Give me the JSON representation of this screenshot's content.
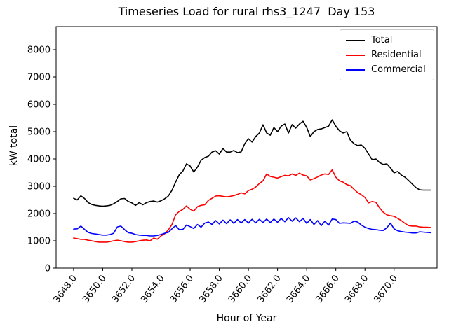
{
  "header": {
    "title": "Timeseries Load for rural rhs3_1247  Day 153"
  },
  "axes": {
    "xlabel": "Hour of Year",
    "ylabel": "kW total",
    "xtick_labels": [
      "3648.0",
      "3650.0",
      "3652.0",
      "3654.0",
      "3656.0",
      "3658.0",
      "3660.0",
      "3662.0",
      "3664.0",
      "3666.0",
      "3668.0",
      "3670.0"
    ],
    "ytick_labels": [
      "0",
      "1000",
      "2000",
      "3000",
      "4000",
      "5000",
      "6000",
      "7000",
      "8000"
    ]
  },
  "legend": {
    "items": [
      {
        "label": "Total",
        "color": "#000000"
      },
      {
        "label": "Residential",
        "color": "#ff0000"
      },
      {
        "label": "Commercial",
        "color": "#0000ff"
      }
    ]
  },
  "chart_data": {
    "type": "line",
    "title": "Timeseries Load for rural rhs3_1247  Day 153",
    "xlabel": "Hour of Year",
    "ylabel": "kW total",
    "xlim": [
      3646.8,
      3672.95
    ],
    "ylim": [
      0,
      8846
    ],
    "xticks": [
      3648,
      3650,
      3652,
      3654,
      3656,
      3658,
      3660,
      3662,
      3664,
      3666,
      3668,
      3670
    ],
    "yticks": [
      0,
      1000,
      2000,
      3000,
      4000,
      5000,
      6000,
      7000,
      8000
    ],
    "grid": false,
    "legend_position": "upper right",
    "x": [
      3648.0,
      3648.25,
      3648.5,
      3648.75,
      3649.0,
      3649.25,
      3649.5,
      3649.75,
      3650.0,
      3650.25,
      3650.5,
      3650.75,
      3651.0,
      3651.25,
      3651.5,
      3651.75,
      3652.0,
      3652.25,
      3652.5,
      3652.75,
      3653.0,
      3653.25,
      3653.5,
      3653.75,
      3654.0,
      3654.25,
      3654.5,
      3654.75,
      3655.0,
      3655.25,
      3655.5,
      3655.75,
      3656.0,
      3656.25,
      3656.5,
      3656.75,
      3657.0,
      3657.25,
      3657.5,
      3657.75,
      3658.0,
      3658.25,
      3658.5,
      3658.75,
      3659.0,
      3659.25,
      3659.5,
      3659.75,
      3660.0,
      3660.25,
      3660.5,
      3660.75,
      3661.0,
      3661.25,
      3661.5,
      3661.75,
      3662.0,
      3662.25,
      3662.5,
      3662.75,
      3663.0,
      3663.25,
      3663.5,
      3663.75,
      3664.0,
      3664.25,
      3664.5,
      3664.75,
      3665.0,
      3665.25,
      3665.5,
      3665.75,
      3666.0,
      3666.25,
      3666.5,
      3666.75,
      3667.0,
      3667.25,
      3667.5,
      3667.75,
      3668.0,
      3668.25,
      3668.5,
      3668.75,
      3669.0,
      3669.25,
      3669.5,
      3669.75,
      3670.0,
      3670.25,
      3670.5,
      3670.75,
      3671.0,
      3671.25,
      3671.5,
      3671.75,
      3672.0,
      3672.25,
      3672.5
    ],
    "series": [
      {
        "name": "Total",
        "color": "#000000",
        "values": [
          2560,
          2500,
          2650,
          2550,
          2400,
          2330,
          2300,
          2280,
          2270,
          2280,
          2300,
          2360,
          2440,
          2540,
          2550,
          2440,
          2390,
          2300,
          2400,
          2320,
          2400,
          2440,
          2460,
          2420,
          2470,
          2540,
          2640,
          2850,
          3150,
          3420,
          3560,
          3820,
          3740,
          3520,
          3700,
          3950,
          4050,
          4100,
          4250,
          4300,
          4180,
          4380,
          4250,
          4250,
          4310,
          4230,
          4260,
          4560,
          4740,
          4620,
          4820,
          4950,
          5250,
          4950,
          4870,
          5150,
          5000,
          5200,
          5280,
          4950,
          5260,
          5130,
          5280,
          5380,
          5150,
          4820,
          5000,
          5080,
          5100,
          5150,
          5200,
          5430,
          5200,
          5030,
          4950,
          5000,
          4690,
          4560,
          4490,
          4510,
          4390,
          4180,
          3970,
          4000,
          3870,
          3800,
          3820,
          3670,
          3490,
          3540,
          3410,
          3330,
          3210,
          3080,
          2950,
          2870,
          2860,
          2860,
          2860
        ]
      },
      {
        "name": "Residential",
        "color": "#ff0000",
        "values": [
          1100,
          1080,
          1050,
          1050,
          1020,
          1000,
          970,
          950,
          950,
          950,
          970,
          1000,
          1020,
          1000,
          970,
          950,
          950,
          970,
          1000,
          1020,
          1030,
          1000,
          1100,
          1060,
          1180,
          1260,
          1400,
          1600,
          1950,
          2080,
          2150,
          2280,
          2160,
          2090,
          2250,
          2300,
          2320,
          2480,
          2560,
          2640,
          2650,
          2630,
          2610,
          2630,
          2660,
          2700,
          2760,
          2720,
          2840,
          2890,
          2970,
          3100,
          3200,
          3450,
          3360,
          3330,
          3300,
          3350,
          3400,
          3380,
          3450,
          3400,
          3480,
          3410,
          3380,
          3230,
          3280,
          3340,
          3410,
          3450,
          3430,
          3600,
          3330,
          3200,
          3150,
          3060,
          3020,
          2890,
          2770,
          2690,
          2590,
          2390,
          2440,
          2410,
          2210,
          2050,
          1950,
          1920,
          1900,
          1820,
          1740,
          1640,
          1560,
          1540,
          1540,
          1510,
          1500,
          1500,
          1490
        ]
      },
      {
        "name": "Commercial",
        "color": "#0000ff",
        "values": [
          1430,
          1440,
          1540,
          1420,
          1310,
          1270,
          1250,
          1230,
          1210,
          1210,
          1230,
          1280,
          1510,
          1540,
          1410,
          1300,
          1280,
          1230,
          1210,
          1200,
          1200,
          1180,
          1180,
          1200,
          1230,
          1280,
          1310,
          1440,
          1560,
          1410,
          1420,
          1580,
          1520,
          1450,
          1600,
          1500,
          1650,
          1690,
          1600,
          1740,
          1620,
          1760,
          1630,
          1770,
          1640,
          1780,
          1650,
          1780,
          1650,
          1790,
          1660,
          1790,
          1670,
          1800,
          1670,
          1800,
          1680,
          1820,
          1700,
          1850,
          1720,
          1840,
          1700,
          1820,
          1640,
          1780,
          1600,
          1740,
          1560,
          1720,
          1580,
          1800,
          1780,
          1640,
          1660,
          1650,
          1640,
          1720,
          1690,
          1580,
          1500,
          1450,
          1420,
          1410,
          1390,
          1380,
          1480,
          1650,
          1440,
          1370,
          1340,
          1320,
          1310,
          1290,
          1290,
          1330,
          1320,
          1310,
          1300
        ]
      }
    ]
  }
}
